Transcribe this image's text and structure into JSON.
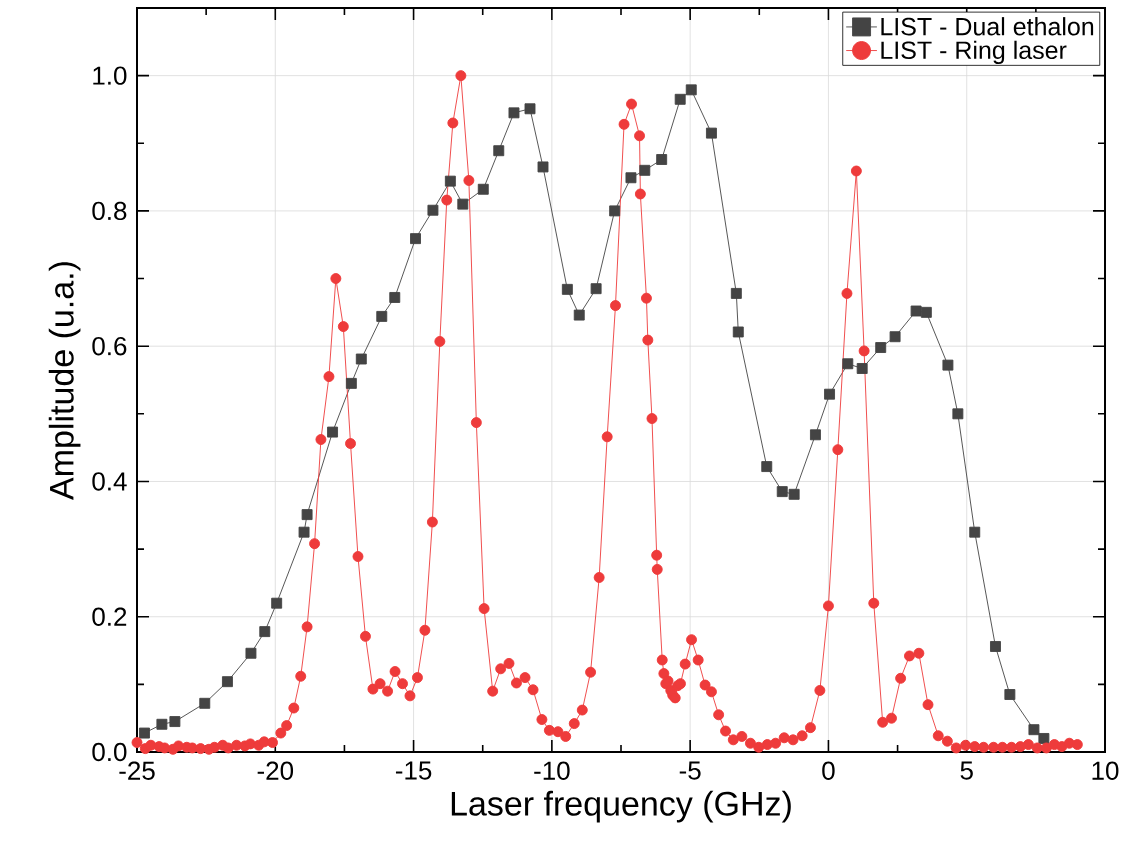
{
  "chart_data": {
    "type": "line",
    "xlabel": "Laser frequency (GHz)",
    "ylabel": "Amplitude (u.a.)",
    "xlim": [
      -25,
      10
    ],
    "ylim": [
      0,
      1.1
    ],
    "xticks": [
      -25,
      -20,
      -15,
      -10,
      -5,
      0,
      5,
      10
    ],
    "yticks": [
      {
        "value": 0,
        "label": "0.0"
      },
      {
        "value": 0.2,
        "label": "0.2"
      },
      {
        "value": 0.4,
        "label": "0.4"
      },
      {
        "value": 0.6,
        "label": "0.6"
      },
      {
        "value": 0.8,
        "label": "0.8"
      },
      {
        "value": 1,
        "label": "1.0"
      }
    ],
    "grid": true,
    "legend": "top right",
    "line_style": "solid",
    "series": [
      {
        "name": "LIST - Dual ethalon",
        "color": "#444444",
        "marker": "square",
        "x": [
          -24.73,
          -24.1,
          -23.63,
          -22.55,
          -21.73,
          -20.88,
          -20.38,
          -19.95,
          -18.96,
          -18.85,
          -17.93,
          -17.25,
          -16.89,
          -16.15,
          -15.68,
          -14.93,
          -14.3,
          -13.67,
          -13.22,
          -12.48,
          -11.92,
          -11.37,
          -10.79,
          -10.32,
          -9.44,
          -9.01,
          -8.4,
          -7.73,
          -7.14,
          -6.64,
          -6.03,
          -5.36,
          -4.96,
          -4.23,
          -3.33,
          -3.26,
          -2.23,
          -1.67,
          -1.24,
          -0.47,
          0.04,
          0.7,
          1.22,
          1.89,
          2.41,
          3.17,
          3.54,
          4.32,
          4.68,
          5.29,
          6.04,
          6.56,
          7.43,
          7.79
        ],
        "values": [
          0.028,
          0.041,
          0.045,
          0.072,
          0.104,
          0.146,
          0.178,
          0.22,
          0.325,
          0.351,
          0.473,
          0.545,
          0.581,
          0.644,
          0.672,
          0.759,
          0.801,
          0.844,
          0.81,
          0.832,
          0.889,
          0.945,
          0.951,
          0.865,
          0.684,
          0.646,
          0.685,
          0.8,
          0.849,
          0.86,
          0.876,
          0.965,
          0.979,
          0.915,
          0.678,
          0.621,
          0.422,
          0.385,
          0.381,
          0.469,
          0.529,
          0.574,
          0.567,
          0.598,
          0.614,
          0.652,
          0.65,
          0.572,
          0.5,
          0.325,
          0.156,
          0.085,
          0.033,
          0.02
        ]
      },
      {
        "name": "LIST - Ring laser",
        "color": "#ee3b3b",
        "marker": "circle",
        "x": [
          -25.0,
          -24.7,
          -24.5,
          -24.2,
          -24.0,
          -23.7,
          -23.5,
          -23.2,
          -23.0,
          -22.7,
          -22.4,
          -22.2,
          -21.9,
          -21.7,
          -21.4,
          -21.1,
          -20.9,
          -20.6,
          -20.4,
          -20.1,
          -19.8,
          -19.59,
          -19.33,
          -19.08,
          -18.85,
          -18.58,
          -18.35,
          -18.06,
          -17.81,
          -17.54,
          -17.28,
          -17.01,
          -16.74,
          -16.47,
          -16.21,
          -15.94,
          -15.67,
          -15.4,
          -15.13,
          -14.86,
          -14.59,
          -14.32,
          -14.05,
          -13.8,
          -13.58,
          -13.29,
          -13.0,
          -12.73,
          -12.45,
          -12.14,
          -11.85,
          -11.55,
          -11.28,
          -10.97,
          -10.68,
          -10.36,
          -10.09,
          -9.78,
          -9.5,
          -9.19,
          -8.9,
          -8.6,
          -8.29,
          -8.0,
          -7.7,
          -7.39,
          -7.12,
          -6.83,
          -6.8,
          -6.58,
          -6.53,
          -6.38,
          -6.21,
          -6.19,
          -6.01,
          -5.95,
          -5.88,
          -5.8,
          -5.7,
          -5.63,
          -5.54,
          -5.45,
          -5.35,
          -5.18,
          -4.95,
          -4.71,
          -4.46,
          -4.23,
          -3.97,
          -3.72,
          -3.44,
          -3.13,
          -2.82,
          -2.52,
          -2.21,
          -1.91,
          -1.6,
          -1.28,
          -0.95,
          -0.65,
          -0.31,
          0.0,
          0.34,
          0.67,
          1.01,
          1.29,
          1.64,
          1.96,
          2.28,
          2.61,
          2.93,
          3.27,
          3.6,
          3.97,
          4.3,
          4.62,
          4.96,
          5.29,
          5.61,
          5.97,
          6.29,
          6.62,
          6.94,
          7.23,
          7.55,
          7.88,
          8.17,
          8.44,
          8.71,
          9.0
        ],
        "values": [
          0.014,
          0.005,
          0.01,
          0.008,
          0.006,
          0.004,
          0.009,
          0.007,
          0.006,
          0.005,
          0.004,
          0.007,
          0.01,
          0.006,
          0.01,
          0.009,
          0.012,
          0.01,
          0.015,
          0.014,
          0.028,
          0.039,
          0.065,
          0.112,
          0.185,
          0.308,
          0.462,
          0.555,
          0.7,
          0.629,
          0.456,
          0.289,
          0.171,
          0.093,
          0.101,
          0.09,
          0.119,
          0.101,
          0.083,
          0.11,
          0.18,
          0.34,
          0.607,
          0.816,
          0.93,
          1.0,
          0.845,
          0.487,
          0.212,
          0.09,
          0.123,
          0.131,
          0.102,
          0.11,
          0.092,
          0.048,
          0.032,
          0.03,
          0.023,
          0.042,
          0.062,
          0.118,
          0.258,
          0.466,
          0.66,
          0.928,
          0.958,
          0.911,
          0.825,
          0.671,
          0.609,
          0.493,
          0.291,
          0.27,
          0.136,
          0.116,
          0.101,
          0.105,
          0.091,
          0.084,
          0.08,
          0.098,
          0.101,
          0.13,
          0.166,
          0.136,
          0.099,
          0.089,
          0.055,
          0.031,
          0.018,
          0.023,
          0.013,
          0.007,
          0.011,
          0.013,
          0.021,
          0.018,
          0.024,
          0.036,
          0.091,
          0.216,
          0.447,
          0.678,
          0.859,
          0.593,
          0.22,
          0.044,
          0.05,
          0.109,
          0.142,
          0.146,
          0.07,
          0.024,
          0.016,
          0.006,
          0.01,
          0.008,
          0.007,
          0.007,
          0.007,
          0.007,
          0.008,
          0.011,
          0.006,
          0.006,
          0.011,
          0.008,
          0.013,
          0.011
        ]
      }
    ]
  }
}
